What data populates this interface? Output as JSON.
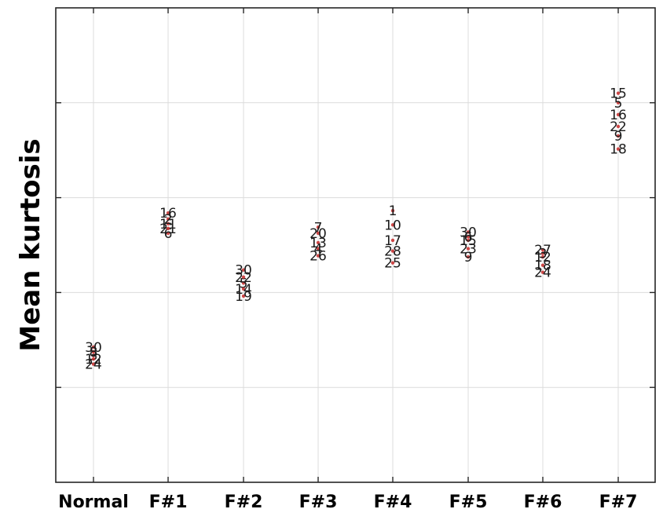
{
  "chart_data": {
    "type": "scatter",
    "ylabel": "Mean kurtosis",
    "xlabel": "",
    "title": "",
    "categories": [
      "Normal",
      "F#1",
      "F#2",
      "F#3",
      "F#4",
      "F#5",
      "F#6",
      "F#7"
    ],
    "ylim": [
      0,
      20
    ],
    "yticks": [
      0,
      4,
      8,
      12,
      16,
      20
    ],
    "grid": true,
    "point_labels_shown": true,
    "groups": [
      {
        "category": "Normal",
        "points": [
          {
            "label": "24",
            "value": 4.98
          },
          {
            "label": "30",
            "value": 5.7
          },
          {
            "label": "3",
            "value": 5.35
          },
          {
            "label": "12",
            "value": 5.2
          },
          {
            "label": "8",
            "value": 5.5
          }
        ]
      },
      {
        "label_note": "",
        "category": "F#1",
        "points": [
          {
            "label": "16",
            "value": 11.35
          },
          {
            "label": "6",
            "value": 10.5
          },
          {
            "label": "11",
            "value": 10.9
          },
          {
            "label": "21",
            "value": 10.7
          },
          {
            "label": "2",
            "value": 11.1
          }
        ]
      },
      {
        "category": "F#2",
        "points": [
          {
            "label": "30",
            "value": 8.95
          },
          {
            "label": "19",
            "value": 7.85
          },
          {
            "label": "5",
            "value": 8.4
          },
          {
            "label": "14",
            "value": 8.15
          },
          {
            "label": "22",
            "value": 8.65
          }
        ]
      },
      {
        "category": "F#3",
        "points": [
          {
            "label": "7",
            "value": 10.75
          },
          {
            "label": "26",
            "value": 9.55
          },
          {
            "label": "20",
            "value": 10.5
          },
          {
            "label": "13",
            "value": 10.1
          },
          {
            "label": "4",
            "value": 9.85
          }
        ]
      },
      {
        "category": "F#4",
        "points": [
          {
            "label": "1",
            "value": 11.45
          },
          {
            "label": "25",
            "value": 9.25
          },
          {
            "label": "10",
            "value": 10.85
          },
          {
            "label": "17",
            "value": 10.2
          },
          {
            "label": "28",
            "value": 9.75
          }
        ]
      },
      {
        "category": "F#5",
        "points": [
          {
            "label": "30",
            "value": 10.55
          },
          {
            "label": "9",
            "value": 9.5
          },
          {
            "label": "15",
            "value": 10.2
          },
          {
            "label": "23",
            "value": 9.85
          },
          {
            "label": "6",
            "value": 10.35
          }
        ]
      },
      {
        "category": "F#6",
        "points": [
          {
            "label": "27",
            "value": 9.8
          },
          {
            "label": "24",
            "value": 8.85
          },
          {
            "label": "12",
            "value": 9.5
          },
          {
            "label": "18",
            "value": 9.15
          },
          {
            "label": "3",
            "value": 9.65
          }
        ]
      },
      {
        "category": "F#7",
        "points": [
          {
            "label": "15",
            "value": 16.4
          },
          {
            "label": "5",
            "value": 16.0
          },
          {
            "label": "16",
            "value": 15.5
          },
          {
            "label": "18",
            "value": 14.05
          },
          {
            "label": "22",
            "value": 15.0
          },
          {
            "label": "9",
            "value": 14.6
          }
        ]
      }
    ]
  }
}
